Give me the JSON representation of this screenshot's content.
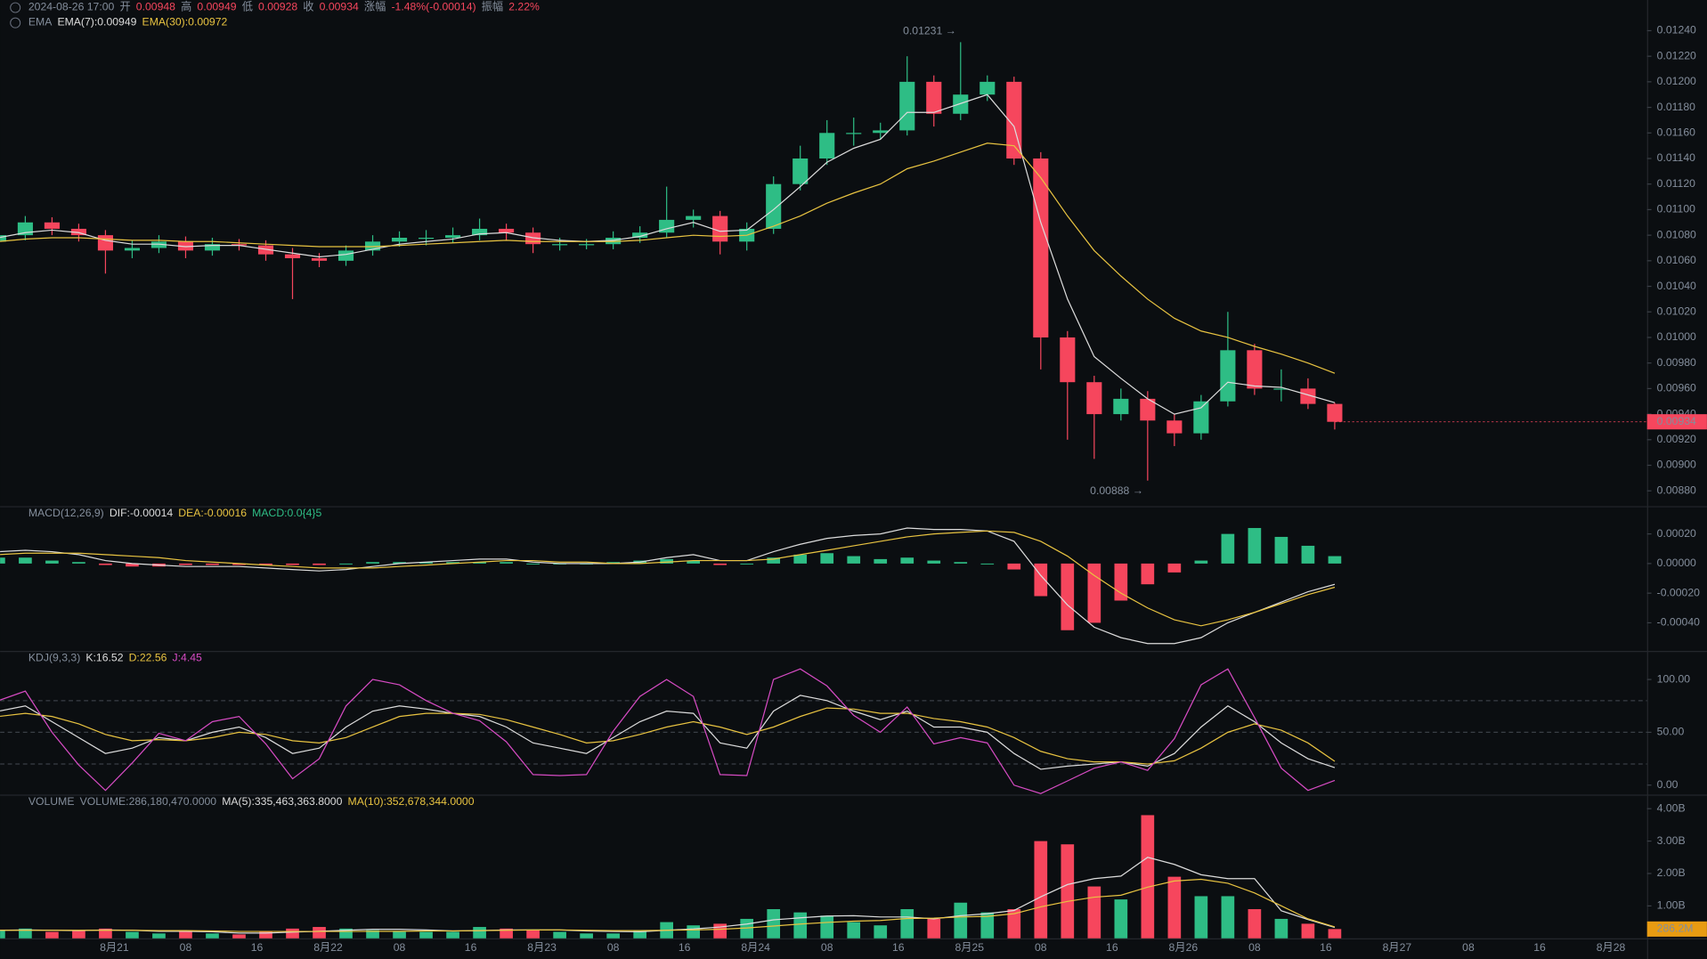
{
  "chart_data": [
    {
      "type": "candlestick",
      "header": [
        {
          "text": "2024-08-26 17:00",
          "color": "#848e9c"
        },
        {
          "text": "开",
          "color": "#848e9c"
        },
        {
          "text": 0.00948,
          "color": "#f6465d"
        },
        {
          "text": "高",
          "color": "#848e9c"
        },
        {
          "text": 0.00949,
          "color": "#f6465d"
        },
        {
          "text": "低",
          "color": "#848e9c"
        },
        {
          "text": 0.00928,
          "color": "#f6465d"
        },
        {
          "text": "收",
          "color": "#848e9c"
        },
        {
          "text": 0.00934,
          "color": "#f6465d"
        },
        {
          "text": "涨幅",
          "color": "#848e9c"
        },
        {
          "text": "-1.48%(-0.00014)",
          "color": "#f6465d"
        },
        {
          "text": "振幅",
          "color": "#848e9c"
        },
        {
          "text": "2.22%",
          "color": "#f6465d"
        }
      ],
      "indicator": "EMA",
      "up_color": "#2ebd85",
      "down_color": "#f6465d",
      "open": [
        0.01075,
        0.0108,
        0.0109,
        0.01085,
        0.0108,
        0.01068,
        0.0107,
        0.01075,
        0.01068,
        0.01073,
        0.01072,
        0.01065,
        0.01062,
        0.0106,
        0.01068,
        0.01075,
        0.01078,
        0.01078,
        0.0108,
        0.01085,
        0.01082,
        0.01073,
        0.01073,
        0.01073,
        0.01078,
        0.01082,
        0.01092,
        0.01095,
        0.01075,
        0.01085,
        0.0112,
        0.0114,
        0.0116,
        0.0116,
        0.01162,
        0.012,
        0.01175,
        0.0119,
        0.012,
        0.0114,
        0.01,
        0.00965,
        0.0094,
        0.00952,
        0.00935,
        0.00925,
        0.0095,
        0.0099,
        0.0096,
        0.0096,
        0.00948
      ],
      "high": [
        0.01092,
        0.01095,
        0.01094,
        0.01089,
        0.01084,
        0.01076,
        0.0108,
        0.01079,
        0.01078,
        0.01077,
        0.01076,
        0.0107,
        0.01066,
        0.01072,
        0.0108,
        0.01083,
        0.01084,
        0.01086,
        0.01093,
        0.01089,
        0.01086,
        0.01078,
        0.01077,
        0.01083,
        0.01087,
        0.01118,
        0.011,
        0.01099,
        0.0109,
        0.01126,
        0.0115,
        0.0117,
        0.01172,
        0.01168,
        0.0122,
        0.01205,
        0.01231,
        0.01205,
        0.01204,
        0.01145,
        0.01005,
        0.0097,
        0.0096,
        0.00958,
        0.0094,
        0.00955,
        0.0102,
        0.00995,
        0.00975,
        0.00968,
        0.00949
      ],
      "low": [
        0.0107,
        0.01076,
        0.0108,
        0.01075,
        0.0105,
        0.01062,
        0.01066,
        0.01062,
        0.01064,
        0.01068,
        0.0106,
        0.0103,
        0.01055,
        0.01056,
        0.01064,
        0.01071,
        0.01072,
        0.01074,
        0.01076,
        0.01076,
        0.01066,
        0.01068,
        0.01069,
        0.01069,
        0.01074,
        0.01078,
        0.01086,
        0.01065,
        0.01068,
        0.01081,
        0.01115,
        0.01135,
        0.0115,
        0.01155,
        0.01158,
        0.01165,
        0.0117,
        0.01185,
        0.01135,
        0.00975,
        0.0092,
        0.00905,
        0.00935,
        0.00888,
        0.00915,
        0.0092,
        0.00946,
        0.00955,
        0.0095,
        0.00944,
        0.00928
      ],
      "close": [
        0.0108,
        0.0109,
        0.01085,
        0.0108,
        0.01068,
        0.0107,
        0.01075,
        0.01068,
        0.01073,
        0.01072,
        0.01065,
        0.01062,
        0.0106,
        0.01068,
        0.01075,
        0.01078,
        0.01078,
        0.0108,
        0.01085,
        0.01082,
        0.01073,
        0.01073,
        0.01073,
        0.01078,
        0.01082,
        0.01092,
        0.01095,
        0.01075,
        0.01085,
        0.0112,
        0.0114,
        0.0116,
        0.0116,
        0.01162,
        0.012,
        0.01175,
        0.0119,
        0.012,
        0.0114,
        0.01,
        0.00965,
        0.0094,
        0.00952,
        0.00935,
        0.00925,
        0.0095,
        0.0099,
        0.0096,
        0.0096,
        0.00948,
        0.00934
      ],
      "series": [
        {
          "name": "EMA(7):0.00949",
          "color": "#dcdcdc",
          "values": [
            0.01078,
            0.01082,
            0.01084,
            0.01082,
            0.01076,
            0.01073,
            0.01073,
            0.01071,
            0.01072,
            0.01072,
            0.01069,
            0.01066,
            0.01063,
            0.01065,
            0.01069,
            0.01073,
            0.01075,
            0.01077,
            0.01081,
            0.01082,
            0.01078,
            0.01076,
            0.01075,
            0.01076,
            0.01079,
            0.01085,
            0.0109,
            0.01083,
            0.01084,
            0.011,
            0.01118,
            0.01137,
            0.01148,
            0.01155,
            0.01176,
            0.01176,
            0.01183,
            0.0119,
            0.01165,
            0.0109,
            0.0103,
            0.00985,
            0.00968,
            0.00952,
            0.0094,
            0.00945,
            0.00965,
            0.00962,
            0.00961,
            0.00955,
            0.00949
          ]
        },
        {
          "name": "EMA(30):0.00972",
          "color": "#e8c341",
          "values": [
            0.01075,
            0.01077,
            0.01078,
            0.01078,
            0.01077,
            0.01076,
            0.01076,
            0.01075,
            0.01075,
            0.01074,
            0.01073,
            0.01072,
            0.01071,
            0.01071,
            0.01071,
            0.01072,
            0.01073,
            0.01074,
            0.01075,
            0.01076,
            0.01075,
            0.01075,
            0.01075,
            0.01075,
            0.01076,
            0.01078,
            0.0108,
            0.01079,
            0.0108,
            0.01087,
            0.01095,
            0.01105,
            0.01113,
            0.0112,
            0.01132,
            0.01138,
            0.01145,
            0.01152,
            0.0115,
            0.01125,
            0.01095,
            0.01068,
            0.01048,
            0.0103,
            0.01015,
            0.01005,
            0.01,
            0.00993,
            0.00987,
            0.0098,
            0.00972
          ]
        }
      ],
      "high_label": "0.01231 →",
      "low_label": "0.00888 →",
      "ylim": [
        0.00868,
        0.01264
      ],
      "yticks": [
        {
          "value": 0.0124,
          "label": "0.01240"
        },
        {
          "value": 0.0122,
          "label": "0.01220"
        },
        {
          "value": 0.012,
          "label": "0.01200"
        },
        {
          "value": 0.0118,
          "label": "0.01180"
        },
        {
          "value": 0.0116,
          "label": "0.01160"
        },
        {
          "value": 0.0114,
          "label": "0.01140"
        },
        {
          "value": 0.0112,
          "label": "0.01120"
        },
        {
          "value": 0.011,
          "label": "0.01100"
        },
        {
          "value": 0.0108,
          "label": "0.01080"
        },
        {
          "value": 0.0106,
          "label": "0.01060"
        },
        {
          "value": 0.0104,
          "label": "0.01040"
        },
        {
          "value": 0.0102,
          "label": "0.01020"
        },
        {
          "value": 0.01,
          "label": "0.01000"
        },
        {
          "value": 0.0098,
          "label": "0.00980"
        },
        {
          "value": 0.0096,
          "label": "0.00960"
        },
        {
          "value": 0.0094,
          "label": "0.00940"
        },
        {
          "value": 0.0092,
          "label": "0.00920"
        },
        {
          "value": 0.009,
          "label": "0.00900"
        },
        {
          "value": 0.0088,
          "label": "0.00880"
        }
      ]
    },
    {
      "type": "macd",
      "indicator": "MACD(12,26,9)",
      "series": [
        {
          "name": "DIF:-0.00014",
          "color": "#dcdcdc",
          "values": [
            8e-05,
            9e-05,
            8e-05,
            6e-05,
            2e-05,
            0,
            -1e-05,
            -2e-05,
            -2e-05,
            -2e-05,
            -3e-05,
            -4e-05,
            -5e-05,
            -4e-05,
            -2e-05,
            0,
            1e-05,
            2e-05,
            3e-05,
            3e-05,
            1e-05,
            0,
            0,
            0,
            1e-05,
            4e-05,
            6e-05,
            2e-05,
            2e-05,
            8e-05,
            0.00013,
            0.00017,
            0.00019,
            0.0002,
            0.00024,
            0.00023,
            0.00023,
            0.00022,
            0.00015,
            -8e-05,
            -0.00028,
            -0.00043,
            -0.0005,
            -0.00054,
            -0.00054,
            -0.0005,
            -0.0004,
            -0.00033,
            -0.00026,
            -0.00019,
            -0.00014
          ]
        },
        {
          "name": "DEA:-0.00016",
          "color": "#e8c341",
          "values": [
            6e-05,
            7e-05,
            7e-05,
            7e-05,
            6e-05,
            5e-05,
            4e-05,
            2e-05,
            1e-05,
            0,
            -1e-05,
            -2e-05,
            -3e-05,
            -3e-05,
            -3e-05,
            -2e-05,
            -1e-05,
            0,
            1e-05,
            2e-05,
            2e-05,
            1e-05,
            1e-05,
            0,
            0,
            1e-05,
            2e-05,
            2e-05,
            2e-05,
            3e-05,
            6e-05,
            9e-05,
            0.00012,
            0.00015,
            0.00018,
            0.0002,
            0.00021,
            0.00022,
            0.00021,
            0.00015,
            5e-05,
            -8e-05,
            -0.0002,
            -0.0003,
            -0.00038,
            -0.00042,
            -0.00038,
            -0.00033,
            -0.00027,
            -0.00021,
            -0.00016
          ]
        }
      ],
      "histogram": {
        "name": "MACD:0.0{4}5",
        "color": "#2ebd85",
        "up_color": "#2ebd85",
        "down_color": "#f6465d",
        "values": [
          4e-05,
          4e-05,
          2e-05,
          1e-05,
          -1e-05,
          -2e-05,
          -2e-05,
          -1e-05,
          -1e-05,
          -1e-05,
          -1e-05,
          -1e-05,
          -1e-05,
          0,
          1e-05,
          1e-05,
          1e-05,
          1e-05,
          1e-05,
          1e-05,
          0,
          0,
          0,
          1e-05,
          2e-05,
          3e-05,
          2e-05,
          -1e-05,
          0,
          4e-05,
          6e-05,
          7e-05,
          5e-05,
          3e-05,
          4e-05,
          2e-05,
          1e-05,
          0,
          -4e-05,
          -0.00022,
          -0.00045,
          -0.0004,
          -0.00025,
          -0.00014,
          -6e-05,
          2e-05,
          0.0002,
          0.00024,
          0.00018,
          0.00012,
          5e-05
        ]
      },
      "ylim": [
        -0.00059,
        0.00038
      ],
      "yticks": [
        {
          "value": 0.0002,
          "label": "0.00020"
        },
        {
          "value": 0,
          "label": "0.00000"
        },
        {
          "value": -0.0002,
          "label": "-0.00020"
        },
        {
          "value": -0.0004,
          "label": "-0.00040"
        }
      ]
    },
    {
      "type": "kdj",
      "indicator": "KDJ(9,3,3)",
      "series": [
        {
          "name": "K:16.52",
          "color": "#dcdcdc",
          "values": [
            70,
            75,
            60,
            45,
            30,
            35,
            45,
            42,
            50,
            55,
            45,
            30,
            35,
            55,
            70,
            75,
            72,
            68,
            65,
            55,
            40,
            35,
            30,
            45,
            60,
            70,
            68,
            40,
            35,
            70,
            85,
            80,
            70,
            62,
            70,
            55,
            55,
            50,
            30,
            15,
            18,
            20,
            22,
            18,
            30,
            55,
            75,
            60,
            40,
            25,
            16.52
          ]
        },
        {
          "name": "D:22.56",
          "color": "#e8c341",
          "values": [
            65,
            68,
            65,
            58,
            48,
            42,
            43,
            42,
            45,
            50,
            48,
            42,
            40,
            45,
            55,
            65,
            68,
            68,
            67,
            62,
            55,
            48,
            40,
            42,
            48,
            55,
            60,
            55,
            48,
            55,
            65,
            73,
            72,
            68,
            68,
            63,
            60,
            55,
            45,
            32,
            25,
            22,
            22,
            20,
            23,
            35,
            50,
            58,
            52,
            40,
            22.56
          ]
        },
        {
          "name": "J:4.45",
          "color": "#d64bc3",
          "values": [
            80,
            89,
            50,
            19,
            -5,
            21,
            49,
            42,
            60,
            65,
            39,
            6,
            25,
            75,
            100,
            95,
            80,
            68,
            61,
            41,
            10,
            9,
            10,
            51,
            84,
            100,
            84,
            10,
            9,
            100,
            110,
            94,
            66,
            50,
            74,
            39,
            45,
            40,
            0,
            -8,
            4,
            16,
            22,
            14,
            44,
            95,
            110,
            64,
            16,
            -5,
            4.45
          ]
        }
      ],
      "levels": [
        80,
        50,
        20
      ],
      "ylim": [
        -9,
        126
      ],
      "yticks": [
        {
          "value": 100,
          "label": "100.00"
        },
        {
          "value": 50,
          "label": "50.00"
        },
        {
          "value": 0,
          "label": "0.00"
        }
      ]
    },
    {
      "type": "volume",
      "indicator": "VOLUME",
      "bars": {
        "name": "VOLUME:286,180,470.0000",
        "color": "#848e9c",
        "values": [
          0.25,
          0.3,
          0.2,
          0.25,
          0.3,
          0.2,
          0.15,
          0.2,
          0.15,
          0.12,
          0.2,
          0.3,
          0.35,
          0.3,
          0.25,
          0.2,
          0.2,
          0.2,
          0.35,
          0.3,
          0.25,
          0.2,
          0.15,
          0.15,
          0.25,
          0.5,
          0.4,
          0.45,
          0.6,
          0.9,
          0.8,
          0.7,
          0.5,
          0.4,
          0.9,
          0.6,
          1.1,
          0.8,
          0.9,
          3,
          2.9,
          1.6,
          1.2,
          3.8,
          1.9,
          1.3,
          1.3,
          0.9,
          0.6,
          0.45,
          0.286
        ]
      },
      "current_label": "286.2M",
      "current_color": "#e89b12",
      "series": [
        {
          "name": "MA(5):335,463,363.8000",
          "color": "#dcdcdc",
          "values": [
            0.25,
            0.26,
            0.25,
            0.24,
            0.26,
            0.25,
            0.22,
            0.22,
            0.2,
            0.16,
            0.16,
            0.19,
            0.22,
            0.25,
            0.28,
            0.28,
            0.26,
            0.23,
            0.24,
            0.26,
            0.26,
            0.26,
            0.23,
            0.21,
            0.2,
            0.25,
            0.29,
            0.35,
            0.44,
            0.57,
            0.63,
            0.69,
            0.7,
            0.66,
            0.66,
            0.6,
            0.7,
            0.76,
            0.86,
            1.28,
            1.66,
            1.84,
            1.92,
            2.5,
            2.28,
            1.96,
            1.84,
            1.84,
            0.85,
            0.58,
            0.335
          ]
        },
        {
          "name": "MA(10):352,678,344.0000",
          "color": "#e8c341",
          "values": [
            0.25,
            0.25,
            0.25,
            0.25,
            0.25,
            0.25,
            0.24,
            0.24,
            0.23,
            0.21,
            0.21,
            0.21,
            0.21,
            0.21,
            0.22,
            0.22,
            0.23,
            0.23,
            0.24,
            0.25,
            0.26,
            0.26,
            0.25,
            0.24,
            0.24,
            0.25,
            0.26,
            0.28,
            0.32,
            0.38,
            0.44,
            0.49,
            0.53,
            0.55,
            0.61,
            0.62,
            0.66,
            0.68,
            0.76,
            0.97,
            1.14,
            1.27,
            1.33,
            1.58,
            1.77,
            1.82,
            1.7,
            1.4,
            1,
            0.6,
            0.353
          ]
        }
      ],
      "ylim": [
        0,
        4.4
      ],
      "yticks": [
        {
          "value": 4,
          "label": "4.00B"
        },
        {
          "value": 3,
          "label": "3.00B"
        },
        {
          "value": 2,
          "label": "2.00B"
        },
        {
          "value": 1,
          "label": "1.00B"
        }
      ],
      "xticks": [
        "8月21",
        "08",
        "16",
        "8月22",
        "08",
        "16",
        "8月23",
        "08",
        "16",
        "8月24",
        "08",
        "16",
        "8月25",
        "08",
        "16",
        "8月26",
        "08",
        "16",
        "8月27",
        "08",
        "16",
        "8月28"
      ]
    }
  ]
}
